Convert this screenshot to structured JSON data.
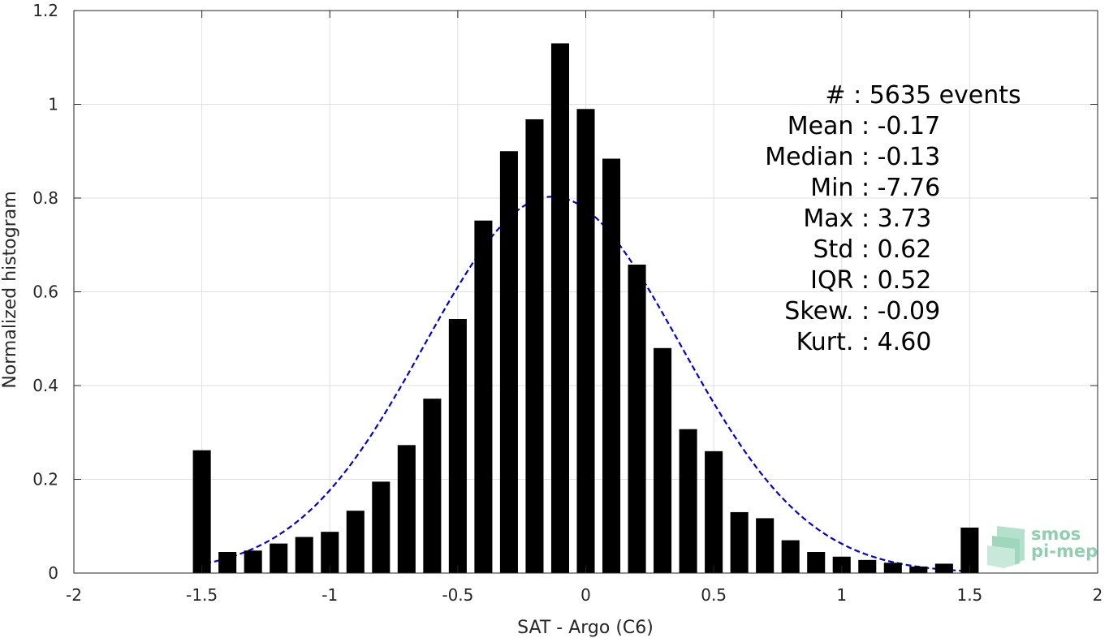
{
  "chart_data": {
    "type": "bar",
    "xlabel": "SAT - Argo (C6)",
    "ylabel": "Normalized histogram",
    "xlim": [
      -2,
      2
    ],
    "ylim": [
      0,
      1.2
    ],
    "x_ticks": [
      -2,
      -1.5,
      -1,
      -0.5,
      0,
      0.5,
      1,
      1.5,
      2
    ],
    "x_tick_labels": [
      "-2",
      "-1.5",
      "-1",
      "-0.5",
      "0",
      "0.5",
      "1",
      "1.5",
      "2"
    ],
    "y_ticks": [
      0,
      0.2,
      0.4,
      0.6,
      0.8,
      1,
      1.2
    ],
    "y_tick_labels": [
      "0",
      "0.2",
      "0.4",
      "0.6",
      "0.8",
      "1",
      "1.2"
    ],
    "grid": true,
    "bar_width": 0.07,
    "bar_color": "#000000",
    "x": [
      -1.5,
      -1.4,
      -1.3,
      -1.2,
      -1.1,
      -1.0,
      -0.9,
      -0.8,
      -0.7,
      -0.6,
      -0.5,
      -0.4,
      -0.3,
      -0.2,
      -0.1,
      0.0,
      0.1,
      0.2,
      0.3,
      0.4,
      0.5,
      0.6,
      0.7,
      0.8,
      0.9,
      1.0,
      1.1,
      1.2,
      1.3,
      1.4,
      1.5
    ],
    "values": [
      0.262,
      0.045,
      0.048,
      0.063,
      0.077,
      0.088,
      0.133,
      0.195,
      0.273,
      0.372,
      0.542,
      0.752,
      0.9,
      0.968,
      1.13,
      0.99,
      0.884,
      0.658,
      0.48,
      0.307,
      0.26,
      0.13,
      0.117,
      0.07,
      0.045,
      0.035,
      0.028,
      0.022,
      0.014,
      0.02,
      0.097
    ],
    "fit_curve": {
      "style": "dashed",
      "color": "#0000dd",
      "mean": -0.13,
      "sigma": 0.5,
      "peak": 0.803,
      "x_range": [
        -1.52,
        1.52
      ]
    },
    "stats": [
      "#  : 5635 events",
      "Mean : -0.17",
      "Median : -0.13",
      "Min : -7.76",
      "Max : 3.73",
      "Std : 0.62",
      "IQR : 0.52",
      "Skew. : -0.09",
      "Kurt. : 4.60"
    ]
  },
  "logo": {
    "line1": "smos",
    "line2": "pi-mep",
    "color": "#7cc7a2"
  }
}
